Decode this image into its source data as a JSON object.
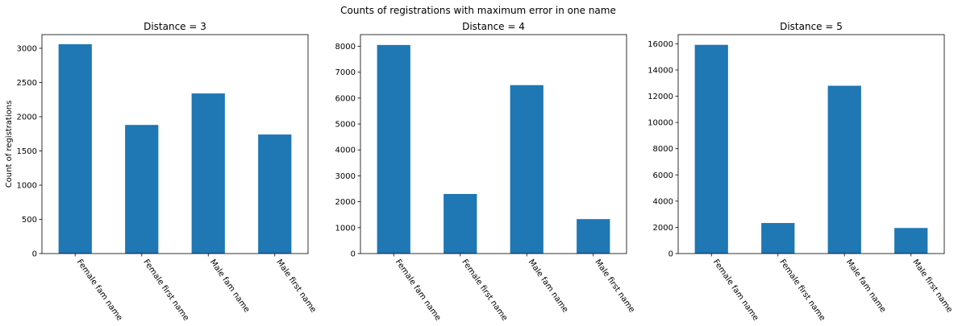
{
  "figure_title": "Counts of registrations with maximum error in one name",
  "bar_color": "#1f77b4",
  "chart_data": [
    {
      "type": "bar",
      "title": "Distance = 3",
      "ylabel": "Count of registrations",
      "xlabel": "",
      "categories": [
        "Female fam name",
        "Female first name",
        "Male fam name",
        "Male first name"
      ],
      "values": [
        3060,
        1880,
        2340,
        1740
      ],
      "ylim": [
        0,
        3200
      ],
      "yticks": [
        0,
        500,
        1000,
        1500,
        2000,
        2500,
        3000
      ],
      "grid": false
    },
    {
      "type": "bar",
      "title": "Distance = 4",
      "ylabel": "",
      "xlabel": "",
      "categories": [
        "Female fam name",
        "Female first name",
        "Male fam name",
        "Male first name"
      ],
      "values": [
        8050,
        2300,
        6500,
        1330
      ],
      "ylim": [
        0,
        8450
      ],
      "yticks": [
        0,
        1000,
        2000,
        3000,
        4000,
        5000,
        6000,
        7000,
        8000
      ],
      "grid": false
    },
    {
      "type": "bar",
      "title": "Distance = 5",
      "ylabel": "",
      "xlabel": "",
      "categories": [
        "Female fam name",
        "Female first name",
        "Male fam name",
        "Male first name"
      ],
      "values": [
        15920,
        2330,
        12800,
        1950
      ],
      "ylim": [
        0,
        16700
      ],
      "yticks": [
        0,
        2000,
        4000,
        6000,
        8000,
        10000,
        12000,
        14000,
        16000
      ],
      "grid": false
    }
  ]
}
